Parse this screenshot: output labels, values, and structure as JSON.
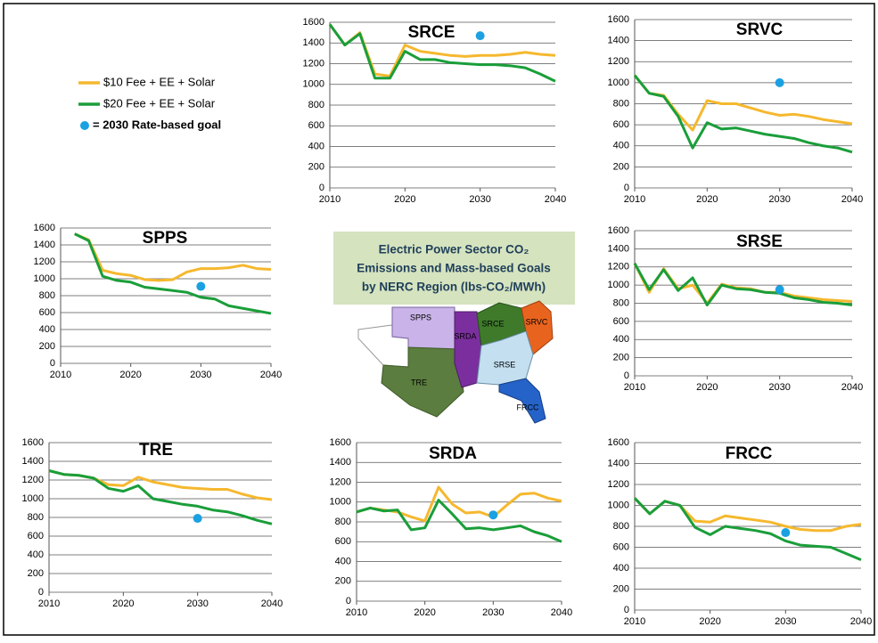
{
  "legend": [
    {
      "name": "$10 Fee + EE + Solar",
      "color": "#f5b82e"
    },
    {
      "name": "$20 Fee + EE + Solar",
      "color": "#1a9e3a"
    },
    {
      "name": "= 2030 Rate-based goal",
      "color": "#1ba1e2"
    }
  ],
  "center_title": [
    "Electric Power Sector CO₂",
    "Emissions and Mass-based Goals",
    "by NERC Region (lbs-CO₂/MWh)"
  ],
  "map": {
    "regions": [
      "SPPS",
      "SRDA",
      "SRCE",
      "SRVC",
      "SRSE",
      "TRE",
      "FRCC"
    ]
  },
  "chart_data": [
    {
      "type": "line",
      "title": "SRCE",
      "x": [
        2010,
        2012,
        2014,
        2016,
        2018,
        2020,
        2022,
        2024,
        2026,
        2028,
        2030,
        2032,
        2034,
        2036,
        2038,
        2040
      ],
      "series": [
        {
          "values": [
            1580,
            1380,
            1500,
            1100,
            1080,
            1380,
            1320,
            1300,
            1280,
            1270,
            1280,
            1280,
            1290,
            1310,
            1290,
            1280
          ]
        },
        {
          "values": [
            1580,
            1380,
            1490,
            1060,
            1060,
            1320,
            1240,
            1240,
            1210,
            1200,
            1190,
            1190,
            1180,
            1160,
            1100,
            1030
          ]
        }
      ],
      "goal_x": 2030,
      "goal": 1470,
      "xlim": [
        2010,
        2040
      ],
      "xticks": [
        2010,
        2020,
        2030,
        2040
      ],
      "ylim": [
        0,
        1600
      ],
      "yticks": [
        0,
        200,
        400,
        600,
        800,
        1000,
        1200,
        1400,
        1600
      ]
    },
    {
      "type": "line",
      "title": "SRVC",
      "x": [
        2010,
        2012,
        2014,
        2016,
        2018,
        2020,
        2022,
        2024,
        2026,
        2028,
        2030,
        2032,
        2034,
        2036,
        2038,
        2040
      ],
      "series": [
        {
          "values": [
            1070,
            900,
            880,
            700,
            550,
            830,
            800,
            800,
            760,
            720,
            690,
            700,
            680,
            650,
            630,
            610
          ]
        },
        {
          "values": [
            1070,
            900,
            870,
            680,
            380,
            620,
            560,
            570,
            540,
            510,
            490,
            470,
            430,
            400,
            380,
            340
          ]
        }
      ],
      "goal_x": 2030,
      "goal": 1000,
      "xlim": [
        2010,
        2040
      ],
      "xticks": [
        2010,
        2020,
        2030,
        2040
      ],
      "ylim": [
        0,
        1600
      ],
      "yticks": [
        0,
        200,
        400,
        600,
        800,
        1000,
        1200,
        1400,
        1600
      ]
    },
    {
      "type": "line",
      "title": "SPPS",
      "x": [
        2010,
        2012,
        2014,
        2016,
        2018,
        2020,
        2022,
        2024,
        2026,
        2028,
        2030,
        2032,
        2034,
        2036,
        2038,
        2040
      ],
      "series": [
        {
          "values": [
            null,
            1530,
            1460,
            1100,
            1060,
            1040,
            990,
            980,
            990,
            1080,
            1120,
            1120,
            1130,
            1160,
            1120,
            1110
          ]
        },
        {
          "values": [
            null,
            1530,
            1450,
            1030,
            980,
            960,
            900,
            880,
            860,
            840,
            780,
            760,
            680,
            650,
            620,
            590
          ]
        }
      ],
      "goal_x": 2030,
      "goal": 910,
      "xlim": [
        2010,
        2040
      ],
      "xticks": [
        2010,
        2020,
        2030,
        2040
      ],
      "ylim": [
        0,
        1600
      ],
      "yticks": [
        0,
        200,
        400,
        600,
        800,
        1000,
        1200,
        1400,
        1600
      ]
    },
    {
      "type": "line",
      "title": "SRSE",
      "x": [
        2010,
        2012,
        2014,
        2016,
        2018,
        2020,
        2022,
        2024,
        2026,
        2028,
        2030,
        2032,
        2034,
        2036,
        2038,
        2040
      ],
      "series": [
        {
          "values": [
            1240,
            920,
            1180,
            960,
            1000,
            800,
            1010,
            970,
            960,
            920,
            920,
            880,
            860,
            840,
            830,
            820
          ]
        },
        {
          "values": [
            1240,
            950,
            1170,
            940,
            1080,
            780,
            1000,
            960,
            950,
            920,
            910,
            860,
            840,
            810,
            800,
            780
          ]
        }
      ],
      "goal_x": 2030,
      "goal": 950,
      "xlim": [
        2010,
        2040
      ],
      "xticks": [
        2010,
        2020,
        2030,
        2040
      ],
      "ylim": [
        0,
        1600
      ],
      "yticks": [
        0,
        200,
        400,
        600,
        800,
        1000,
        1200,
        1400,
        1600
      ]
    },
    {
      "type": "line",
      "title": "TRE",
      "x": [
        2010,
        2012,
        2014,
        2016,
        2018,
        2020,
        2022,
        2024,
        2026,
        2028,
        2030,
        2032,
        2034,
        2036,
        2038,
        2040
      ],
      "series": [
        {
          "values": [
            1300,
            1260,
            1250,
            1220,
            1150,
            1140,
            1230,
            1180,
            1150,
            1120,
            1110,
            1100,
            1100,
            1050,
            1010,
            990
          ]
        },
        {
          "values": [
            1300,
            1260,
            1250,
            1220,
            1110,
            1080,
            1140,
            1000,
            970,
            940,
            920,
            880,
            860,
            820,
            770,
            730
          ]
        }
      ],
      "goal_x": 2030,
      "goal": 790,
      "xlim": [
        2010,
        2040
      ],
      "xticks": [
        2010,
        2020,
        2030,
        2040
      ],
      "ylim": [
        0,
        1600
      ],
      "yticks": [
        0,
        200,
        400,
        600,
        800,
        1000,
        1200,
        1400,
        1600
      ]
    },
    {
      "type": "line",
      "title": "SRDA",
      "x": [
        2010,
        2012,
        2014,
        2016,
        2018,
        2020,
        2022,
        2024,
        2026,
        2028,
        2030,
        2032,
        2034,
        2036,
        2038,
        2040
      ],
      "series": [
        {
          "values": [
            900,
            940,
            920,
            900,
            850,
            810,
            1150,
            980,
            890,
            900,
            850,
            970,
            1080,
            1090,
            1040,
            1010
          ]
        },
        {
          "values": [
            900,
            940,
            910,
            920,
            720,
            740,
            1020,
            880,
            730,
            740,
            720,
            740,
            760,
            700,
            660,
            600
          ]
        }
      ],
      "goal_x": 2030,
      "goal": 870,
      "xlim": [
        2010,
        2040
      ],
      "xticks": [
        2010,
        2020,
        2030,
        2040
      ],
      "ylim": [
        0,
        1600
      ],
      "yticks": [
        0,
        200,
        400,
        600,
        800,
        1000,
        1200,
        1400,
        1600
      ]
    },
    {
      "type": "line",
      "title": "FRCC",
      "x": [
        2010,
        2012,
        2014,
        2016,
        2018,
        2020,
        2022,
        2024,
        2026,
        2028,
        2030,
        2032,
        2034,
        2036,
        2038,
        2040
      ],
      "series": [
        {
          "values": [
            1070,
            920,
            1040,
            1000,
            850,
            840,
            900,
            880,
            860,
            840,
            800,
            770,
            760,
            760,
            800,
            820
          ]
        },
        {
          "values": [
            1070,
            920,
            1040,
            1000,
            790,
            720,
            800,
            780,
            760,
            730,
            660,
            620,
            610,
            600,
            540,
            480
          ]
        }
      ],
      "goal_x": 2030,
      "goal": 740,
      "xlim": [
        2010,
        2040
      ],
      "xticks": [
        2010,
        2020,
        2030,
        2040
      ],
      "ylim": [
        0,
        1600
      ],
      "yticks": [
        0,
        200,
        400,
        600,
        800,
        1000,
        1200,
        1400,
        1600
      ]
    }
  ]
}
